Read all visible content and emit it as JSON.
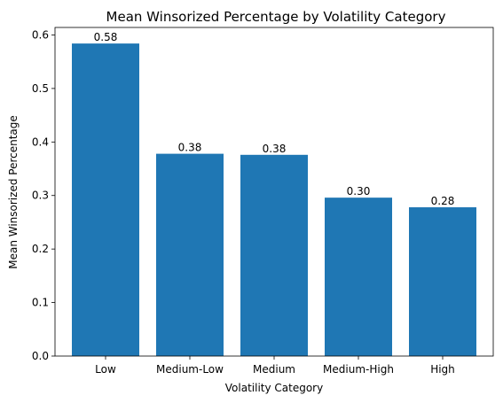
{
  "chart_data": {
    "type": "bar",
    "title": "Mean Winsorized Percentage by Volatility Category",
    "xlabel": "Volatility Category",
    "ylabel": "Mean Winsorized Percentage",
    "categories": [
      "Low",
      "Medium-Low",
      "Medium",
      "Medium-High",
      "High"
    ],
    "values": [
      0.584,
      0.378,
      0.376,
      0.296,
      0.278
    ],
    "data_labels": [
      "0.58",
      "0.38",
      "0.38",
      "0.30",
      "0.28"
    ],
    "ylim": [
      0,
      0.614
    ],
    "yticks": [
      0.0,
      0.1,
      0.2,
      0.3,
      0.4,
      0.5,
      0.6
    ],
    "ytick_labels": [
      "0.0",
      "0.1",
      "0.2",
      "0.3",
      "0.4",
      "0.5",
      "0.6"
    ],
    "grid": false,
    "bar_color": "#1f77b4"
  }
}
